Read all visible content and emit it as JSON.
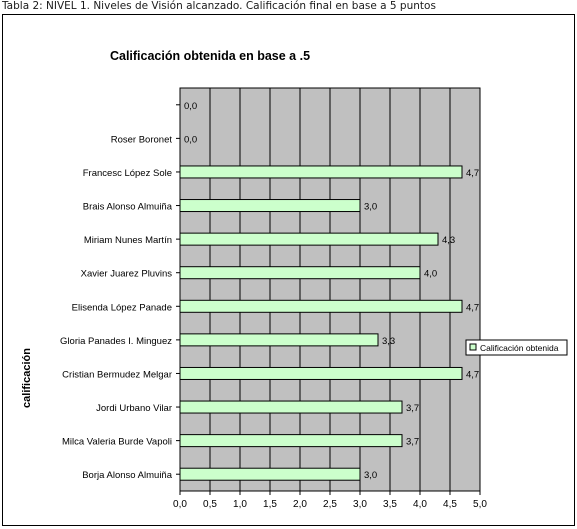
{
  "caption": "Tabla 2: NIVEL 1. Niveles de Visión alcanzado. Calificación final en base a 5 puntos",
  "colors": {
    "plot_bg": "#c0c0c0",
    "bar_fill": "#ccffcc",
    "bar_stroke": "#000000",
    "grid": "#000000"
  },
  "chart_data": {
    "type": "bar",
    "orientation": "horizontal",
    "title": "Calificación obtenida en base a .5",
    "ylabel": "calificación",
    "xlabel": "",
    "xlim": [
      0,
      5
    ],
    "xticks": [
      "0,0",
      "0,5",
      "1,0",
      "1,5",
      "2,0",
      "2,5",
      "3,0",
      "3,5",
      "4,0",
      "4,5",
      "5,0"
    ],
    "grid": "vertical",
    "legend_position": "right",
    "categories": [
      "",
      "Roser Boronet",
      "Francesc López Sole",
      "Brais Alonso Almuiña",
      "Miriam Nunes Martín",
      "Xavier Juarez Pluvins",
      "Elisenda López Panade",
      "Gloria Panades I. Minguez",
      "Cristian Bermudez Melgar",
      "Jordi Urbano Vilar",
      "Milca Valeria Burde Vapoli",
      "Borja Alonso Almuiña"
    ],
    "series": [
      {
        "name": "Calificación obtenida",
        "values": [
          0.0,
          0.0,
          4.7,
          3.0,
          4.3,
          4.0,
          4.7,
          3.3,
          4.7,
          3.7,
          3.7,
          3.0
        ],
        "labels": [
          "0,0",
          "0,0",
          "4,7",
          "3,0",
          "4,3",
          "4,0",
          "4,7",
          "3,3",
          "4,7",
          "3,7",
          "3,7",
          "3,0"
        ]
      }
    ]
  }
}
